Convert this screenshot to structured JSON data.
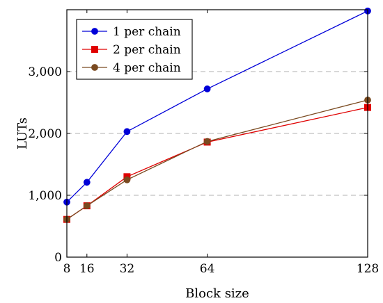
{
  "chart_data": {
    "type": "line",
    "xlabel": "Block size",
    "ylabel": "LUTs",
    "x": [
      8,
      16,
      32,
      64,
      128
    ],
    "xticks": [
      8,
      16,
      32,
      64,
      128
    ],
    "xlim": [
      8,
      128
    ],
    "yticks": [
      0,
      1000,
      2000,
      3000
    ],
    "ytick_labels": [
      "0",
      "1,000",
      "2,000",
      "3,000"
    ],
    "ylim": [
      0,
      4000
    ],
    "grid": "horizontal dashed at y ticks",
    "legend_position": "top-left",
    "series": [
      {
        "name": "1 per chain",
        "color": "#0000d8",
        "marker": "circle",
        "values": [
          890,
          1210,
          2030,
          2720,
          3980
        ]
      },
      {
        "name": "2 per chain",
        "color": "#e00000",
        "marker": "square",
        "values": [
          610,
          830,
          1300,
          1860,
          2420
        ]
      },
      {
        "name": "4 per chain",
        "color": "#7a4a20",
        "marker": "circle",
        "values": [
          610,
          830,
          1250,
          1870,
          2540
        ]
      }
    ]
  }
}
